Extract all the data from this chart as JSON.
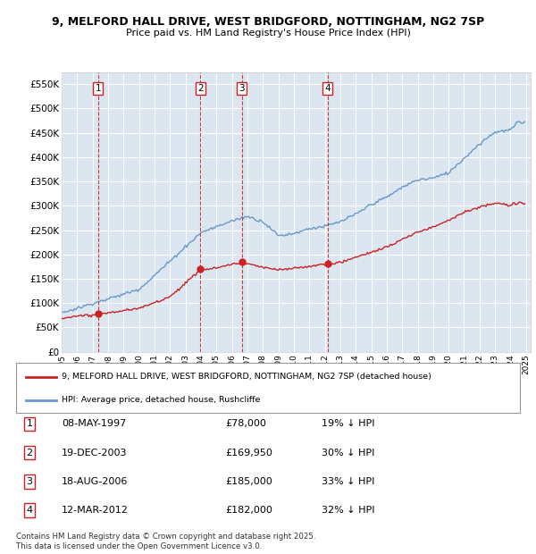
{
  "title_line1": "9, MELFORD HALL DRIVE, WEST BRIDGFORD, NOTTINGHAM, NG2 7SP",
  "title_line2": "Price paid vs. HM Land Registry's House Price Index (HPI)",
  "ylim": [
    0,
    575000
  ],
  "yticks": [
    0,
    50000,
    100000,
    150000,
    200000,
    250000,
    300000,
    350000,
    400000,
    450000,
    500000,
    550000
  ],
  "ytick_labels": [
    "£0",
    "£50K",
    "£100K",
    "£150K",
    "£200K",
    "£250K",
    "£300K",
    "£350K",
    "£400K",
    "£450K",
    "£500K",
    "£550K"
  ],
  "plot_bg_color": "#dce6f1",
  "grid_color": "#ffffff",
  "hpi_color": "#6699cc",
  "price_color": "#cc2222",
  "transaction_line_color": "#cc2222",
  "transactions": [
    {
      "num": 1,
      "date": "08-MAY-1997",
      "year": 1997.36,
      "price": 78000
    },
    {
      "num": 2,
      "date": "19-DEC-2003",
      "year": 2003.97,
      "price": 169950
    },
    {
      "num": 3,
      "date": "18-AUG-2006",
      "year": 2006.63,
      "price": 185000
    },
    {
      "num": 4,
      "date": "12-MAR-2012",
      "year": 2012.19,
      "price": 182000
    }
  ],
  "legend_entries": [
    "9, MELFORD HALL DRIVE, WEST BRIDGFORD, NOTTINGHAM, NG2 7SP (detached house)",
    "HPI: Average price, detached house, Rushcliffe"
  ],
  "footer": "Contains HM Land Registry data © Crown copyright and database right 2025.\nThis data is licensed under the Open Government Licence v3.0.",
  "table_rows": [
    [
      "1",
      "08-MAY-1997",
      "£78,000",
      "19% ↓ HPI"
    ],
    [
      "2",
      "19-DEC-2003",
      "£169,950",
      "30% ↓ HPI"
    ],
    [
      "3",
      "18-AUG-2006",
      "£185,000",
      "33% ↓ HPI"
    ],
    [
      "4",
      "12-MAR-2012",
      "£182,000",
      "32% ↓ HPI"
    ]
  ]
}
